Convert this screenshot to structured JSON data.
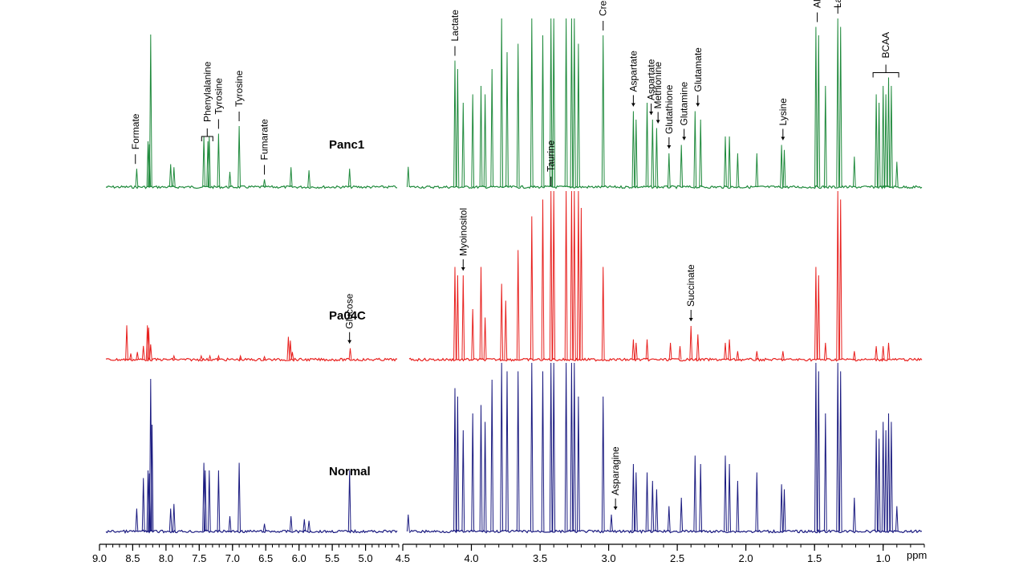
{
  "chart_data": {
    "type": "line",
    "title": "",
    "xlabel": "ppm",
    "ylabel": "",
    "x_axis": {
      "left_panel_range": [
        9.0,
        4.5
      ],
      "right_panel_range": [
        4.5,
        0.7
      ],
      "major_ticks_left": [
        9.0,
        8.5,
        8.0,
        7.5,
        7.0,
        6.5,
        6.0,
        5.5,
        5.0
      ],
      "major_ticks_right": [
        4.5,
        4.0,
        3.5,
        3.0,
        2.5,
        2.0,
        1.5,
        1.0
      ],
      "tick_labels_left": [
        "9.0",
        "8.5",
        "8.0",
        "7.5",
        "7.0",
        "6.5",
        "6.0",
        "5.5",
        "5.0"
      ],
      "tick_labels_right": [
        "4.5",
        "4.0",
        "3.5",
        "3.0",
        "2.5",
        "2.0",
        "1.5",
        "1.0"
      ],
      "unit_label": "ppm"
    },
    "series": [
      {
        "name": "Panc1",
        "color": "#1f8a3c",
        "peaks": [
          [
            8.44,
            0.12
          ],
          [
            8.27,
            0.3
          ],
          [
            8.25,
            0.28
          ],
          [
            8.23,
            1.0
          ],
          [
            7.93,
            0.15
          ],
          [
            7.88,
            0.13
          ],
          [
            7.43,
            0.33
          ],
          [
            7.37,
            0.3
          ],
          [
            7.35,
            0.33
          ],
          [
            7.21,
            0.35
          ],
          [
            7.04,
            0.1
          ],
          [
            6.9,
            0.4
          ],
          [
            6.52,
            0.05
          ],
          [
            6.12,
            0.13
          ],
          [
            5.85,
            0.11
          ],
          [
            5.24,
            0.12
          ],
          [
            4.46,
            0.12
          ],
          [
            4.12,
            0.75
          ],
          [
            4.1,
            0.7
          ],
          [
            4.06,
            0.5
          ],
          [
            3.99,
            0.55
          ],
          [
            3.93,
            0.6
          ],
          [
            3.9,
            0.55
          ],
          [
            3.85,
            0.7
          ],
          [
            3.78,
            1.0
          ],
          [
            3.74,
            0.8
          ],
          [
            3.66,
            0.85
          ],
          [
            3.56,
            1.0
          ],
          [
            3.48,
            0.9
          ],
          [
            3.42,
            1.0
          ],
          [
            3.4,
            1.0
          ],
          [
            3.31,
            1.0
          ],
          [
            3.27,
            1.0
          ],
          [
            3.25,
            1.0
          ],
          [
            3.22,
            0.85
          ],
          [
            3.04,
            0.9
          ],
          [
            2.82,
            0.45
          ],
          [
            2.8,
            0.4
          ],
          [
            2.72,
            0.5
          ],
          [
            2.68,
            0.4
          ],
          [
            2.65,
            0.35
          ],
          [
            2.56,
            0.2
          ],
          [
            2.47,
            0.25
          ],
          [
            2.37,
            0.45
          ],
          [
            2.33,
            0.4
          ],
          [
            2.15,
            0.3
          ],
          [
            2.12,
            0.3
          ],
          [
            2.06,
            0.2
          ],
          [
            1.92,
            0.2
          ],
          [
            1.74,
            0.25
          ],
          [
            1.72,
            0.22
          ],
          [
            1.49,
            0.95
          ],
          [
            1.47,
            0.9
          ],
          [
            1.42,
            0.6
          ],
          [
            1.33,
            1.0
          ],
          [
            1.31,
            0.95
          ],
          [
            1.21,
            0.18
          ],
          [
            1.05,
            0.55
          ],
          [
            1.03,
            0.5
          ],
          [
            1.0,
            0.6
          ],
          [
            0.98,
            0.55
          ],
          [
            0.96,
            0.65
          ],
          [
            0.94,
            0.6
          ],
          [
            0.9,
            0.15
          ]
        ]
      },
      {
        "name": "Pa04C",
        "color": "#e8201e",
        "peaks": [
          [
            8.59,
            0.45
          ],
          [
            8.53,
            0.08
          ],
          [
            8.43,
            0.1
          ],
          [
            8.34,
            0.18
          ],
          [
            8.28,
            0.45
          ],
          [
            8.26,
            0.42
          ],
          [
            8.23,
            0.2
          ],
          [
            7.88,
            0.05
          ],
          [
            7.47,
            0.05
          ],
          [
            7.34,
            0.05
          ],
          [
            7.21,
            0.05
          ],
          [
            6.88,
            0.05
          ],
          [
            6.52,
            0.04
          ],
          [
            6.16,
            0.3
          ],
          [
            6.13,
            0.25
          ],
          [
            6.1,
            0.1
          ],
          [
            5.23,
            0.15
          ],
          [
            4.12,
            0.55
          ],
          [
            4.1,
            0.5
          ],
          [
            4.06,
            0.5
          ],
          [
            3.99,
            0.3
          ],
          [
            3.93,
            0.55
          ],
          [
            3.9,
            0.25
          ],
          [
            3.78,
            0.45
          ],
          [
            3.75,
            0.35
          ],
          [
            3.66,
            0.65
          ],
          [
            3.56,
            0.85
          ],
          [
            3.48,
            0.95
          ],
          [
            3.42,
            1.0
          ],
          [
            3.4,
            1.0
          ],
          [
            3.31,
            1.0
          ],
          [
            3.27,
            1.0
          ],
          [
            3.25,
            1.0
          ],
          [
            3.22,
            1.0
          ],
          [
            3.2,
            0.9
          ],
          [
            3.04,
            0.55
          ],
          [
            2.82,
            0.12
          ],
          [
            2.8,
            0.1
          ],
          [
            2.72,
            0.12
          ],
          [
            2.55,
            0.1
          ],
          [
            2.48,
            0.08
          ],
          [
            2.4,
            0.2
          ],
          [
            2.35,
            0.15
          ],
          [
            2.15,
            0.1
          ],
          [
            2.12,
            0.12
          ],
          [
            2.06,
            0.05
          ],
          [
            1.92,
            0.05
          ],
          [
            1.73,
            0.05
          ],
          [
            1.49,
            0.55
          ],
          [
            1.47,
            0.5
          ],
          [
            1.42,
            0.1
          ],
          [
            1.33,
            1.0
          ],
          [
            1.31,
            0.95
          ],
          [
            1.21,
            0.05
          ],
          [
            1.05,
            0.08
          ],
          [
            1.0,
            0.08
          ],
          [
            0.96,
            0.1
          ]
        ]
      },
      {
        "name": "Normal",
        "color": "#1a1a80",
        "peaks": [
          [
            8.44,
            0.15
          ],
          [
            8.34,
            0.35
          ],
          [
            8.27,
            0.4
          ],
          [
            8.25,
            0.38
          ],
          [
            8.23,
            1.0
          ],
          [
            8.21,
            0.7
          ],
          [
            7.93,
            0.15
          ],
          [
            7.88,
            0.18
          ],
          [
            7.43,
            0.45
          ],
          [
            7.41,
            0.4
          ],
          [
            7.35,
            0.4
          ],
          [
            7.21,
            0.4
          ],
          [
            7.04,
            0.1
          ],
          [
            6.9,
            0.45
          ],
          [
            6.52,
            0.05
          ],
          [
            6.12,
            0.1
          ],
          [
            5.92,
            0.08
          ],
          [
            5.85,
            0.07
          ],
          [
            5.24,
            0.4
          ],
          [
            4.46,
            0.1
          ],
          [
            4.12,
            0.85
          ],
          [
            4.1,
            0.8
          ],
          [
            4.06,
            0.6
          ],
          [
            3.99,
            0.7
          ],
          [
            3.93,
            0.75
          ],
          [
            3.9,
            0.65
          ],
          [
            3.85,
            0.9
          ],
          [
            3.78,
            1.0
          ],
          [
            3.74,
            0.95
          ],
          [
            3.66,
            0.95
          ],
          [
            3.56,
            1.0
          ],
          [
            3.48,
            0.95
          ],
          [
            3.42,
            1.0
          ],
          [
            3.4,
            1.0
          ],
          [
            3.31,
            1.0
          ],
          [
            3.27,
            1.0
          ],
          [
            3.25,
            1.0
          ],
          [
            3.22,
            0.8
          ],
          [
            3.04,
            0.8
          ],
          [
            2.98,
            0.1
          ],
          [
            2.82,
            0.4
          ],
          [
            2.8,
            0.35
          ],
          [
            2.72,
            0.35
          ],
          [
            2.68,
            0.3
          ],
          [
            2.65,
            0.25
          ],
          [
            2.56,
            0.15
          ],
          [
            2.47,
            0.2
          ],
          [
            2.37,
            0.45
          ],
          [
            2.33,
            0.4
          ],
          [
            2.15,
            0.45
          ],
          [
            2.12,
            0.4
          ],
          [
            2.06,
            0.3
          ],
          [
            1.92,
            0.35
          ],
          [
            1.74,
            0.28
          ],
          [
            1.72,
            0.25
          ],
          [
            1.49,
            1.0
          ],
          [
            1.47,
            0.95
          ],
          [
            1.42,
            0.7
          ],
          [
            1.33,
            1.0
          ],
          [
            1.31,
            0.95
          ],
          [
            1.21,
            0.2
          ],
          [
            1.05,
            0.6
          ],
          [
            1.03,
            0.55
          ],
          [
            1.0,
            0.65
          ],
          [
            0.98,
            0.6
          ],
          [
            0.96,
            0.7
          ],
          [
            0.94,
            0.65
          ],
          [
            0.9,
            0.15
          ]
        ]
      }
    ],
    "sample_labels": [
      "Panc1",
      "Pa04C",
      "Normal"
    ],
    "annotations": [
      {
        "text": "Formate",
        "ppm": 8.46,
        "series": "Panc1",
        "marker": "bar"
      },
      {
        "text": "Phenylalanine",
        "ppm": 7.38,
        "series": "Panc1",
        "marker": "bracket"
      },
      {
        "text": "Tyrosine",
        "ppm": 7.21,
        "series": "Panc1",
        "marker": "bar"
      },
      {
        "text": "Tyrosine",
        "ppm": 6.9,
        "series": "Panc1",
        "marker": "bar"
      },
      {
        "text": "Fumarate",
        "ppm": 6.52,
        "series": "Panc1",
        "marker": "bar"
      },
      {
        "text": "Glucose",
        "ppm": 5.24,
        "series": "Pa04C",
        "marker": "arrow"
      },
      {
        "text": "Lactate",
        "ppm": 4.12,
        "series": "Panc1",
        "marker": "bar"
      },
      {
        "text": "Myoinositol",
        "ppm": 4.06,
        "series": "Pa04C",
        "marker": "arrow"
      },
      {
        "text": "Taurine",
        "ppm": 3.42,
        "series": "Pa04C",
        "marker": "bar"
      },
      {
        "text": "Creatine",
        "ppm": 3.04,
        "series": "Panc1",
        "marker": "bar"
      },
      {
        "text": "Asparagine",
        "ppm": 2.95,
        "series": "Normal",
        "marker": "arrow"
      },
      {
        "text": "Aspartate",
        "ppm": 2.82,
        "series": "Panc1",
        "marker": "arrow"
      },
      {
        "text": "Aspartate",
        "ppm": 2.69,
        "series": "Panc1",
        "marker": "arrow"
      },
      {
        "text": "Methionine",
        "ppm": 2.64,
        "series": "Panc1",
        "marker": "arrow"
      },
      {
        "text": "Glutathione",
        "ppm": 2.56,
        "series": "Panc1",
        "marker": "arrow"
      },
      {
        "text": "Glutamine",
        "ppm": 2.45,
        "series": "Panc1",
        "marker": "arrow"
      },
      {
        "text": "Glutamate",
        "ppm": 2.35,
        "series": "Panc1",
        "marker": "arrow"
      },
      {
        "text": "Succinate",
        "ppm": 2.4,
        "series": "Pa04C",
        "marker": "arrow"
      },
      {
        "text": "Lysine",
        "ppm": 1.73,
        "series": "Panc1",
        "marker": "arrow"
      },
      {
        "text": "Alanine",
        "ppm": 1.48,
        "series": "Panc1",
        "marker": "bar"
      },
      {
        "text": "Lactate",
        "ppm": 1.33,
        "series": "Panc1",
        "marker": "bar"
      },
      {
        "text": "BCAA",
        "ppm": 0.98,
        "series": "Panc1",
        "marker": "bracket"
      }
    ],
    "grid": false,
    "legend": "none"
  }
}
